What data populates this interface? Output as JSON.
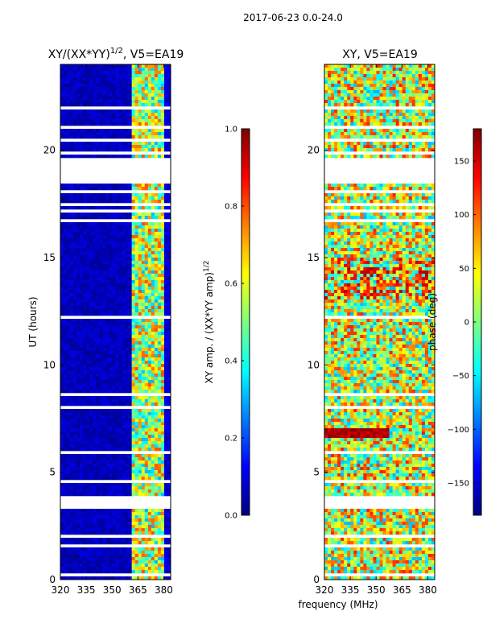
{
  "suptitle": "2017-06-23 0.0-24.0",
  "shared_xlabel": "frequency (MHz)",
  "colormap": {
    "name": "jet",
    "stops": [
      "#00007f",
      "#0000ff",
      "#007fff",
      "#00ffff",
      "#7fff7f",
      "#ffff00",
      "#ff7f00",
      "#ff0000",
      "#7f0000"
    ]
  },
  "chart_data": [
    {
      "type": "heatmap",
      "title": "XY/(XX*YY)",
      "title_sup": "1/2",
      "title_suffix": ", V5=EA19",
      "xlabel": "",
      "ylabel": "UT (hours)",
      "xlim": [
        320,
        384
      ],
      "ylim": [
        0,
        24
      ],
      "xticks": [
        320,
        335,
        350,
        365,
        380
      ],
      "yticks": [
        0,
        5,
        10,
        15,
        20
      ],
      "xtick_labels": [
        "320",
        "335",
        "350",
        "365",
        "380"
      ],
      "ytick_labels": [
        "0",
        "5",
        "10",
        "15",
        "20"
      ],
      "colorbar": {
        "label": "XY amp. / (XX*YY amp)",
        "label_sup": "1/2",
        "range": [
          0.0,
          1.0
        ],
        "ticks": [
          0.0,
          0.2,
          0.4,
          0.6,
          0.8,
          1.0
        ],
        "tick_labels": [
          "0.0",
          "0.2",
          "0.4",
          "0.6",
          "0.8",
          "1.0"
        ]
      },
      "description_of_pattern": "mostly low amplitude (~0.05); bright band 362-381 MHz with values 0.4-0.8",
      "value_profile": [
        {
          "f_min": 320,
          "f_max": 361,
          "value": 0.06
        },
        {
          "f_min": 361,
          "f_max": 381,
          "value": 0.55
        },
        {
          "f_min": 381,
          "f_max": 384,
          "value": 0.08
        }
      ]
    },
    {
      "type": "heatmap",
      "title": "XY, V5=EA19",
      "xlabel": "",
      "ylabel": "",
      "xlim": [
        320,
        384
      ],
      "ylim": [
        0,
        24
      ],
      "xticks": [
        320,
        335,
        350,
        365,
        380
      ],
      "yticks": [
        0,
        5,
        10,
        15,
        20
      ],
      "xtick_labels": [
        "320",
        "335",
        "350",
        "365",
        "380"
      ],
      "ytick_labels": [
        "0",
        "5",
        "10",
        "15",
        "20"
      ],
      "colorbar": {
        "label": "phase (deg)",
        "range": [
          -180,
          180
        ],
        "ticks": [
          -150,
          -100,
          -50,
          0,
          50,
          100,
          150
        ],
        "tick_labels": [
          "−150",
          "−100",
          "−50",
          "0",
          "50",
          "100",
          "150"
        ]
      },
      "description_of_pattern": "phase values spanning -180 to 180 deg; noisy, with red horizontal feature near 6.8 h"
    }
  ],
  "time_blanks_hours": [
    [
      0.15,
      0.3
    ],
    [
      0.55,
      0.6
    ],
    [
      1.5,
      1.6
    ],
    [
      2.0,
      2.05
    ],
    [
      2.55,
      2.6
    ],
    [
      3.25,
      3.9
    ],
    [
      4.05,
      4.1
    ],
    [
      4.55,
      4.6
    ],
    [
      5.05,
      5.12
    ],
    [
      5.9,
      5.95
    ],
    [
      7.6,
      7.65
    ],
    [
      8.0,
      8.05
    ],
    [
      8.6,
      8.7
    ],
    [
      9.15,
      9.2
    ],
    [
      12.2,
      12.25
    ],
    [
      13.45,
      13.5
    ],
    [
      14.55,
      14.6
    ],
    [
      16.15,
      16.25
    ],
    [
      16.65,
      16.85
    ],
    [
      17.05,
      17.25
    ],
    [
      17.45,
      17.55
    ],
    [
      17.95,
      18.15
    ],
    [
      18.45,
      19.6
    ],
    [
      19.85,
      19.95
    ],
    [
      20.35,
      20.55
    ],
    [
      21.05,
      21.1
    ],
    [
      21.95,
      22.05
    ],
    [
      22.45,
      22.5
    ],
    [
      22.95,
      23.0
    ],
    [
      23.5,
      23.55
    ]
  ]
}
